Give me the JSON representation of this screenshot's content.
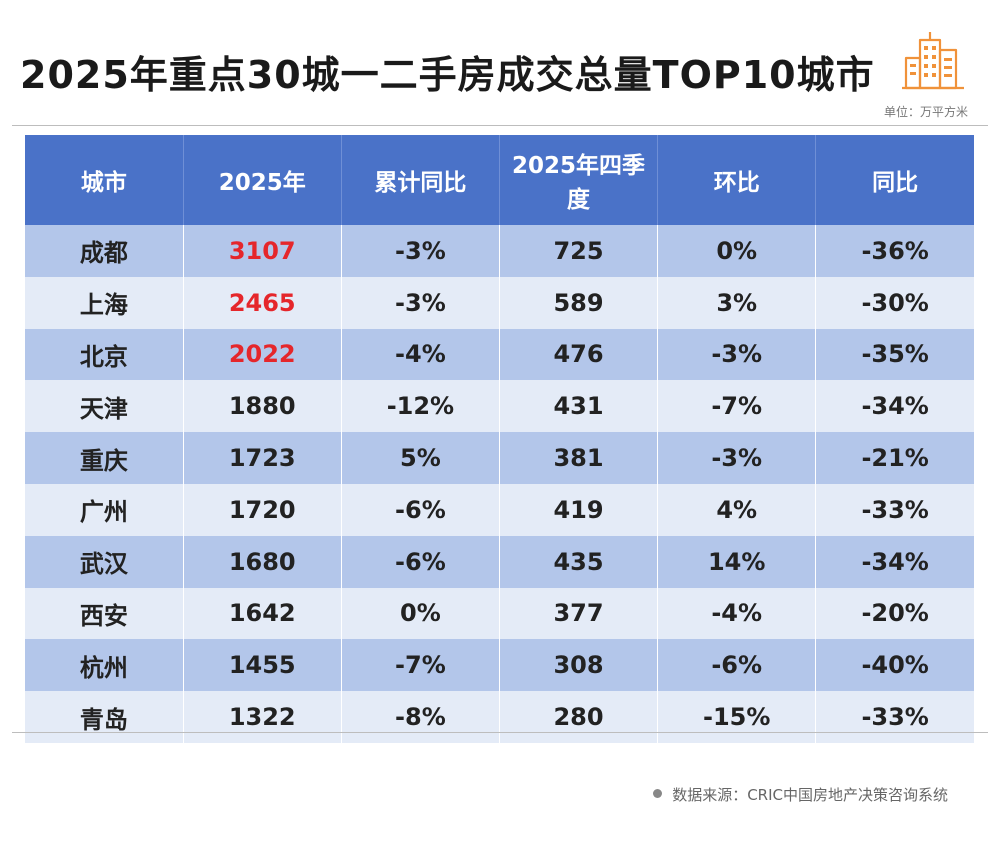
{
  "title": "2025年重点30城一二手房成交总量TOP10城市",
  "unit": "单位：万平方米",
  "source": "数据来源：CRIC中国房地产决策咨询系统",
  "accent_color": "#4a72c8",
  "highlight_color": "#e5262b",
  "icon": "building-icon",
  "table": {
    "headers": [
      "城市",
      "2025年",
      "累计同比",
      "2025年四季度",
      "环比",
      "同比"
    ],
    "rows": [
      {
        "city": "成都",
        "y2025": "3107",
        "cum_yoy": "-3%",
        "q4": "725",
        "qoq": "0%",
        "yoy": "-36%",
        "highlight": true
      },
      {
        "city": "上海",
        "y2025": "2465",
        "cum_yoy": "-3%",
        "q4": "589",
        "qoq": "3%",
        "yoy": "-30%",
        "highlight": true
      },
      {
        "city": "北京",
        "y2025": "2022",
        "cum_yoy": "-4%",
        "q4": "476",
        "qoq": "-3%",
        "yoy": "-35%",
        "highlight": true
      },
      {
        "city": "天津",
        "y2025": "1880",
        "cum_yoy": "-12%",
        "q4": "431",
        "qoq": "-7%",
        "yoy": "-34%",
        "highlight": false
      },
      {
        "city": "重庆",
        "y2025": "1723",
        "cum_yoy": "5%",
        "q4": "381",
        "qoq": "-3%",
        "yoy": "-21%",
        "highlight": false
      },
      {
        "city": "广州",
        "y2025": "1720",
        "cum_yoy": "-6%",
        "q4": "419",
        "qoq": "4%",
        "yoy": "-33%",
        "highlight": false
      },
      {
        "city": "武汉",
        "y2025": "1680",
        "cum_yoy": "-6%",
        "q4": "435",
        "qoq": "14%",
        "yoy": "-34%",
        "highlight": false
      },
      {
        "city": "西安",
        "y2025": "1642",
        "cum_yoy": "0%",
        "q4": "377",
        "qoq": "-4%",
        "yoy": "-20%",
        "highlight": false
      },
      {
        "city": "杭州",
        "y2025": "1455",
        "cum_yoy": "-7%",
        "q4": "308",
        "qoq": "-6%",
        "yoy": "-40%",
        "highlight": false
      },
      {
        "city": "青岛",
        "y2025": "1322",
        "cum_yoy": "-8%",
        "q4": "280",
        "qoq": "-15%",
        "yoy": "-33%",
        "highlight": false
      }
    ]
  }
}
